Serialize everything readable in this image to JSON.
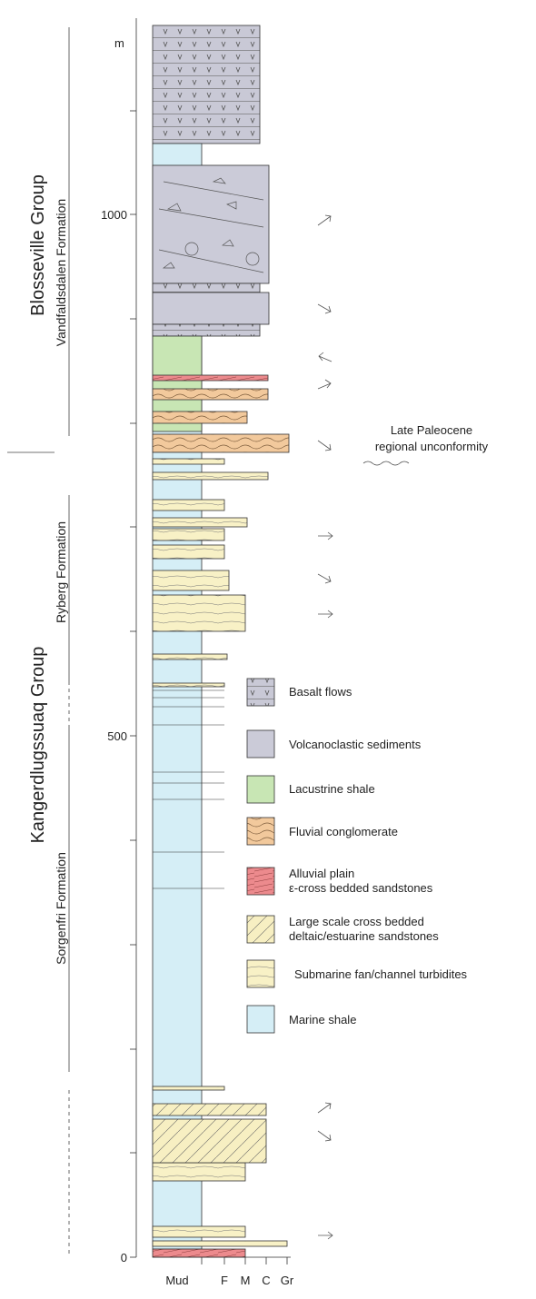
{
  "axis": {
    "unit": "m",
    "ticks": [
      "1000",
      "500",
      "0"
    ],
    "grain_sizes": [
      "Mud",
      "F",
      "M",
      "C",
      "Gr"
    ]
  },
  "groups": [
    "Blosseville Group",
    "Kangerdlugssuaq Group"
  ],
  "formations": [
    "Vandfaldsdalen Formation",
    "Ryberg Formation",
    "Sorgenfri Formation"
  ],
  "annotation": [
    "Late Paleocene",
    "regional unconformity"
  ],
  "legend": [
    [
      "Basalt flows"
    ],
    [
      "Volcanoclastic sediments"
    ],
    [
      "Lacustrine shale"
    ],
    [
      "Fluvial conglomerate"
    ],
    [
      "Alluvial plain",
      "ε-cross bedded sandstones"
    ],
    [
      "Large scale cross bedded",
      "deltaic/estuarine sandstones"
    ],
    [
      "Submarine fan/channel turbidites"
    ],
    [
      "Marine shale"
    ]
  ]
}
